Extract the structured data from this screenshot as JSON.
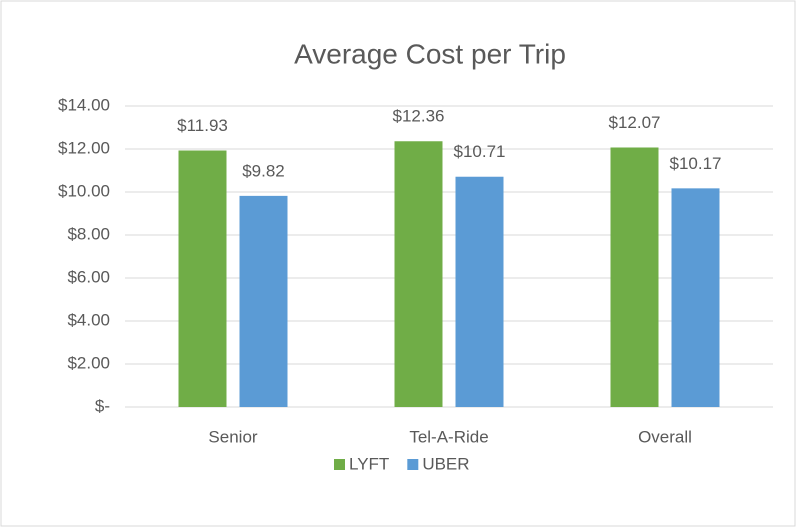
{
  "chart_data": {
    "type": "bar",
    "title": "Average Cost per Trip",
    "categories": [
      "Senior",
      "Tel-A-Ride",
      "Overall"
    ],
    "series": [
      {
        "name": "LYFT",
        "color": "#70ad47",
        "values": [
          11.93,
          12.36,
          12.07
        ],
        "value_labels": [
          "$11.93",
          "$12.36",
          "$12.07"
        ]
      },
      {
        "name": "UBER",
        "color": "#5b9bd5",
        "values": [
          9.82,
          10.71,
          10.17
        ],
        "value_labels": [
          "$9.82",
          "$10.71",
          "$10.17"
        ]
      }
    ],
    "ylim": [
      0,
      14
    ],
    "yticks": [
      {
        "value": 0,
        "label": "$-"
      },
      {
        "value": 2,
        "label": "$2.00"
      },
      {
        "value": 4,
        "label": "$4.00"
      },
      {
        "value": 6,
        "label": "$6.00"
      },
      {
        "value": 8,
        "label": "$8.00"
      },
      {
        "value": 10,
        "label": "$10.00"
      },
      {
        "value": 12,
        "label": "$12.00"
      },
      {
        "value": 14,
        "label": "$14.00"
      }
    ],
    "grid": true,
    "legend": "bottom"
  }
}
